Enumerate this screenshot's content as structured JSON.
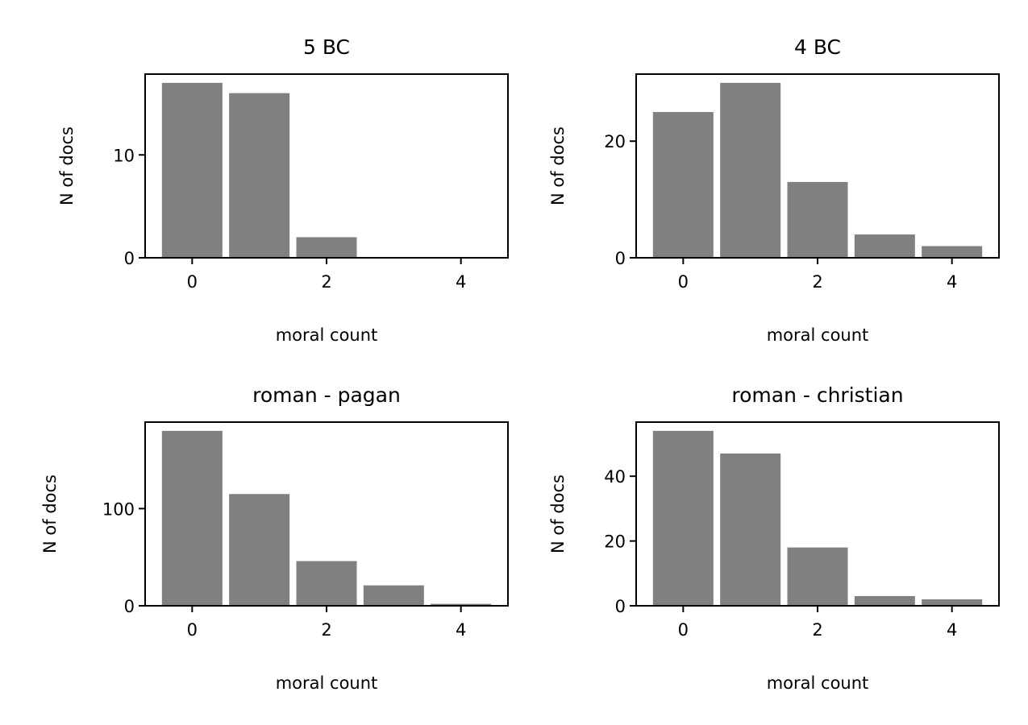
{
  "chart_data": [
    {
      "type": "bar",
      "title": "5 BC",
      "xlabel": "moral count",
      "ylabel": "N of docs",
      "x": [
        0,
        1,
        2,
        3,
        4
      ],
      "values": [
        17,
        16,
        2,
        0,
        0
      ],
      "xlim": [
        -0.7,
        4.7
      ],
      "ylim": [
        0,
        17.85
      ],
      "xticks": [
        0,
        2,
        4
      ],
      "yticks": [
        0,
        10
      ],
      "grid": false,
      "bar_color": "#808080"
    },
    {
      "type": "bar",
      "title": "4 BC",
      "xlabel": "moral count",
      "ylabel": "N of docs",
      "x": [
        0,
        1,
        2,
        3,
        4
      ],
      "values": [
        25,
        30,
        13,
        4,
        2
      ],
      "xlim": [
        -0.7,
        4.7
      ],
      "ylim": [
        0,
        31.5
      ],
      "xticks": [
        0,
        2,
        4
      ],
      "yticks": [
        0,
        20
      ],
      "grid": false,
      "bar_color": "#808080"
    },
    {
      "type": "bar",
      "title": "roman - pagan",
      "xlabel": "moral count",
      "ylabel": "N of docs",
      "x": [
        0,
        1,
        2,
        3,
        4
      ],
      "values": [
        180,
        115,
        46,
        21,
        2
      ],
      "xlim": [
        -0.7,
        4.7
      ],
      "ylim": [
        0,
        189
      ],
      "xticks": [
        0,
        2,
        4
      ],
      "yticks": [
        0,
        100
      ],
      "grid": false,
      "bar_color": "#808080"
    },
    {
      "type": "bar",
      "title": "roman - christian",
      "xlabel": "moral count",
      "ylabel": "N of docs",
      "x": [
        0,
        1,
        2,
        3,
        4
      ],
      "values": [
        54,
        47,
        18,
        3,
        2
      ],
      "xlim": [
        -0.7,
        4.7
      ],
      "ylim": [
        0,
        56.7
      ],
      "xticks": [
        0,
        2,
        4
      ],
      "yticks": [
        0,
        20,
        40
      ],
      "grid": false,
      "bar_color": "#808080"
    }
  ]
}
